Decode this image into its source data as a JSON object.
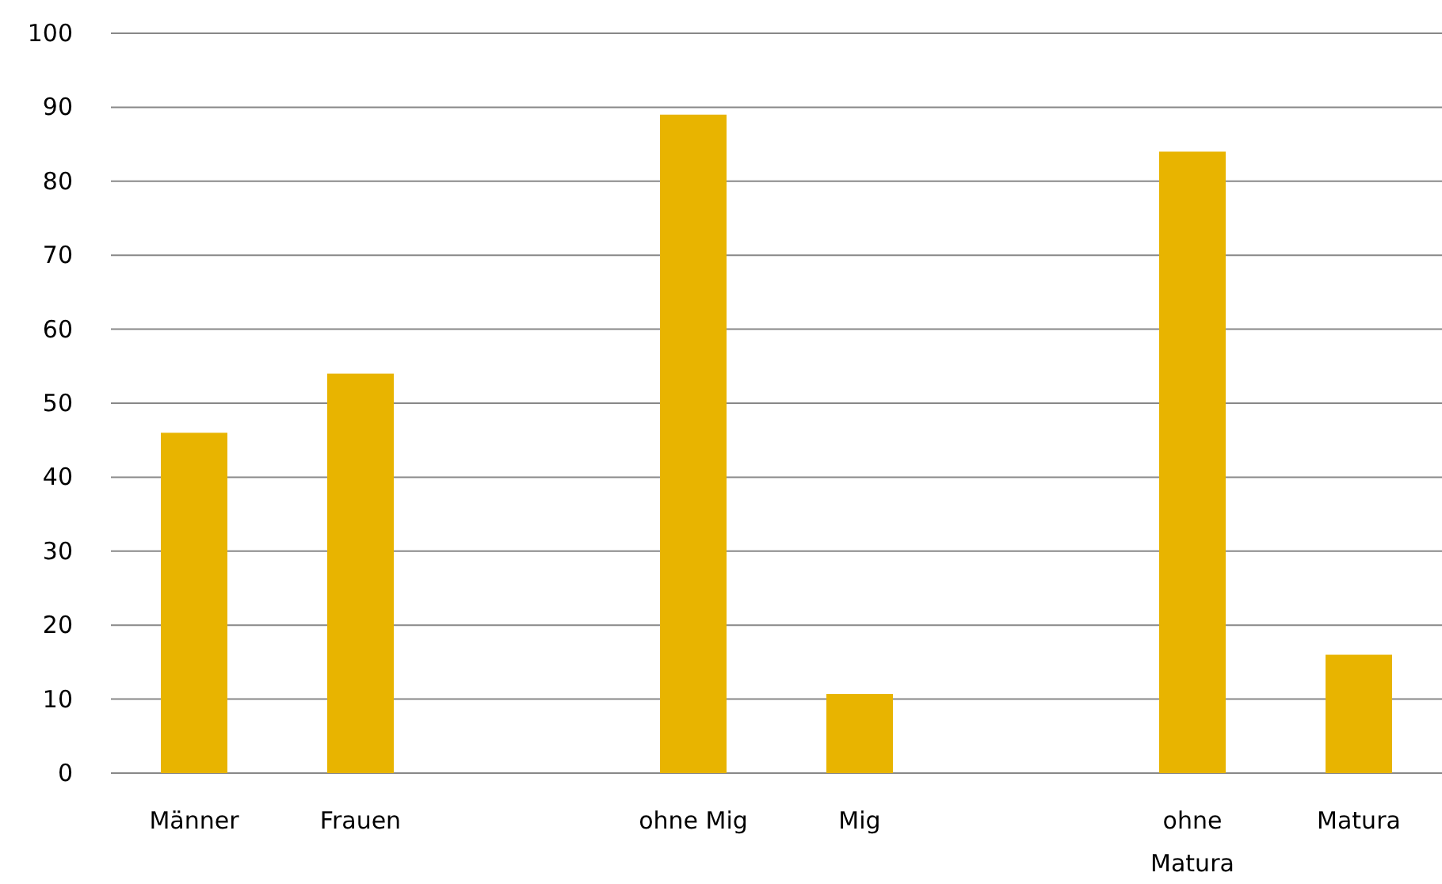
{
  "chart_data": {
    "type": "bar",
    "categories": [
      "Männer",
      "Frauen",
      null,
      "ohne Mig",
      "Mig",
      null,
      "ohne Matura",
      "Matura"
    ],
    "values": [
      46,
      54,
      null,
      89,
      10.7,
      null,
      84,
      16
    ],
    "color": "#e8b400",
    "ylim": [
      0,
      100
    ],
    "yticks": [
      0,
      10,
      20,
      30,
      40,
      50,
      60,
      70,
      80,
      90,
      100
    ],
    "grid": "y"
  }
}
